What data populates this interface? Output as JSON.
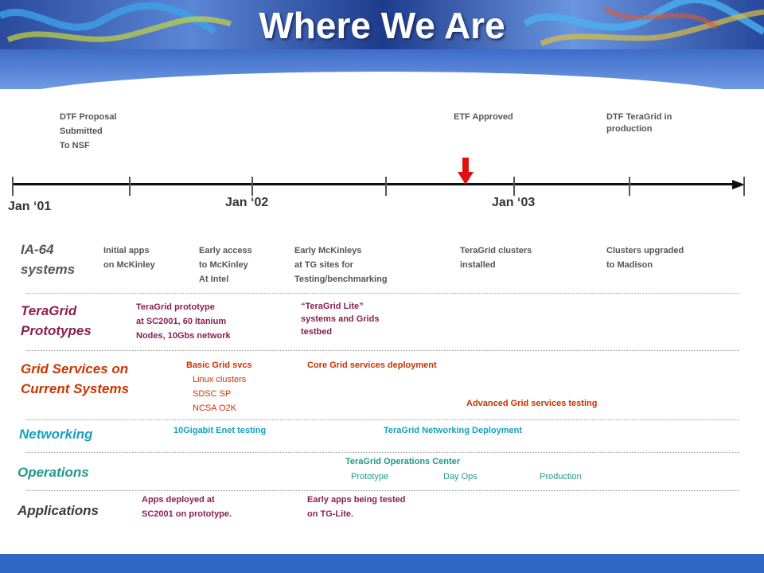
{
  "title": "Where We Are",
  "milestones": {
    "dtf_proposal": "DTF Proposal\nSubmitted\nTo NSF",
    "etf_approved": "ETF Approved",
    "dtf_production": "DTF TeraGrid in\nproduction"
  },
  "timeline": {
    "jan01": "Jan ‘01",
    "jan02": "Jan ‘02",
    "jan03": "Jan ‘03"
  },
  "rows": {
    "ia64": {
      "label": "IA-64\nsystems",
      "items": [
        "Initial apps\non McKinley",
        "Early access\nto McKinley\nAt Intel",
        "Early McKinleys\nat TG sites for\nTesting/benchmarking",
        "TeraGrid clusters\ninstalled",
        "Clusters upgraded\nto Madison"
      ]
    },
    "prototypes": {
      "label": "TeraGrid\nPrototypes",
      "items": [
        "TeraGrid prototype\nat SC2001, 60 Itanium\nNodes, 10Gbs network",
        "“TeraGrid Lite”\nsystems and Grids\ntestbed"
      ]
    },
    "grid_services": {
      "label": "Grid Services on\nCurrent Systems",
      "basic": "Basic Grid svcs",
      "sub": "Linux clusters\nSDSC SP\nNCSA O2K",
      "core": "Core Grid services deployment",
      "advanced": "Advanced Grid services testing"
    },
    "networking": {
      "label": "Networking",
      "items": [
        "10Gigabit Enet testing",
        "TeraGrid Networking Deployment"
      ]
    },
    "operations": {
      "label": "Operations",
      "center": "TeraGrid Operations Center",
      "phases": [
        "Prototype",
        "Day Ops",
        "Production"
      ]
    },
    "applications": {
      "label": "Applications",
      "items": [
        "Apps deployed at\nSC2001 on prototype.",
        "Early apps being tested\non TG-Lite."
      ]
    }
  },
  "colors": {
    "ia64": "#555555",
    "prototypes": "#8b1f4f",
    "grid_services": "#cc3300",
    "networking": "#16a0c0",
    "operations": "#1f9a8a",
    "applications": "#3a3a3a",
    "marker": "#e01010"
  }
}
